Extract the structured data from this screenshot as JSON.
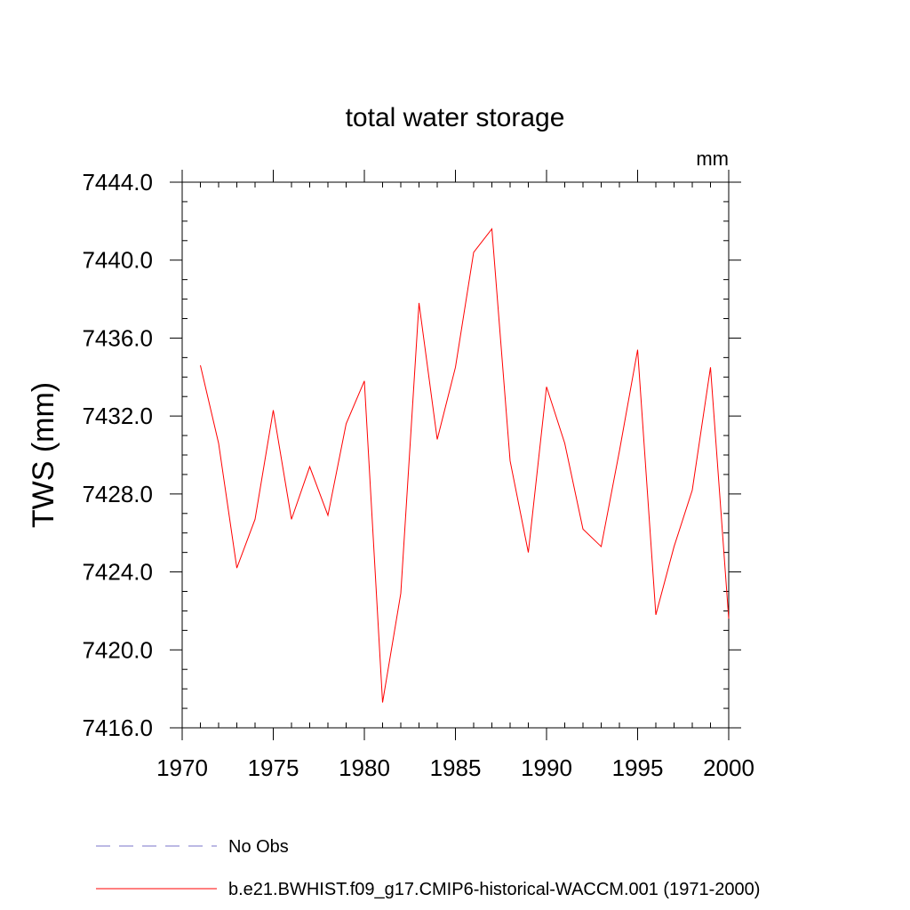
{
  "chart_data": {
    "type": "line",
    "title": "total water storage",
    "units_label": "mm",
    "ylabel": "TWS  (mm)",
    "xlabel": "",
    "xlim": [
      1970,
      2000
    ],
    "ylim": [
      7416,
      7444
    ],
    "x_ticks": [
      1970,
      1975,
      1980,
      1985,
      1990,
      1995,
      2000
    ],
    "x_tick_labels": [
      "1970",
      "1975",
      "1980",
      "1985",
      "1990",
      "1995",
      "2000"
    ],
    "y_ticks": [
      7416,
      7420,
      7424,
      7428,
      7432,
      7436,
      7440,
      7444
    ],
    "y_tick_labels": [
      "7416.0",
      "7420.0",
      "7424.0",
      "7428.0",
      "7432.0",
      "7436.0",
      "7440.0",
      "7444.0"
    ],
    "series": [
      {
        "name": "b.e21.BWHIST.f09_g17.CMIP6-historical-WACCM.001 (1971-2000)",
        "color": "#ff0000",
        "dash": "solid",
        "x": [
          1971,
          1972,
          1973,
          1974,
          1975,
          1976,
          1977,
          1978,
          1979,
          1980,
          1981,
          1982,
          1983,
          1984,
          1985,
          1986,
          1987,
          1988,
          1989,
          1990,
          1991,
          1992,
          1993,
          1994,
          1995,
          1996,
          1997,
          1998,
          1999,
          2000
        ],
        "values": [
          7434.6,
          7430.6,
          7424.2,
          7426.7,
          7432.3,
          7426.7,
          7429.4,
          7426.9,
          7431.6,
          7433.8,
          7417.3,
          7422.9,
          7437.8,
          7430.8,
          7434.5,
          7440.4,
          7441.6,
          7429.7,
          7425.0,
          7433.5,
          7430.6,
          7426.2,
          7425.3,
          7430.2,
          7435.4,
          7421.8,
          7425.3,
          7428.2,
          7434.5,
          7421.6
        ]
      }
    ],
    "legend": [
      {
        "label": "No Obs",
        "color": "#7a73c9",
        "dash": "dashed"
      },
      {
        "label": "b.e21.BWHIST.f09_g17.CMIP6-historical-WACCM.001 (1971-2000)",
        "color": "#ff0000",
        "dash": "solid"
      }
    ],
    "legend_placement": "bottom"
  }
}
